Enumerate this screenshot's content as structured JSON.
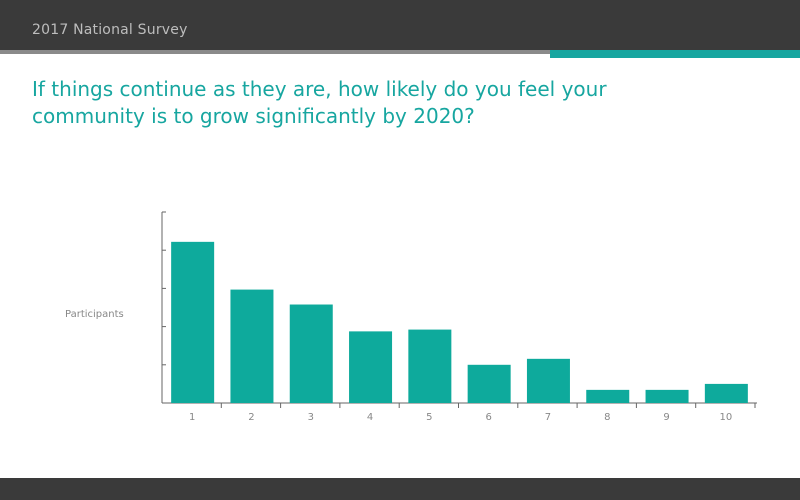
{
  "header": {
    "title": "2017 National Survey"
  },
  "question": "If things continue as they are, how likely do you feel your community is to grow significantly by 2020?",
  "colors": {
    "header_bg": "#3a3a3a",
    "accent": "#17a6a0",
    "accent_gray": "#8a8a8a",
    "bar": "#0eaa9c",
    "axis": "#666666",
    "label": "#888888"
  },
  "chart_data": {
    "type": "bar",
    "categories": [
      "1",
      "2",
      "3",
      "4",
      "5",
      "6",
      "7",
      "8",
      "9",
      "10"
    ],
    "values": [
      27,
      19,
      16.5,
      12,
      12.3,
      6.4,
      7.4,
      2.2,
      2.2,
      3.2
    ],
    "ylabel": "Participants",
    "xlabel": "",
    "ylim": [
      0,
      32
    ],
    "y_ticks": [
      0,
      6.4,
      12.8,
      19.2,
      25.6,
      32
    ],
    "y_tick_labels_shown": false,
    "grid": false,
    "legend": "none"
  }
}
